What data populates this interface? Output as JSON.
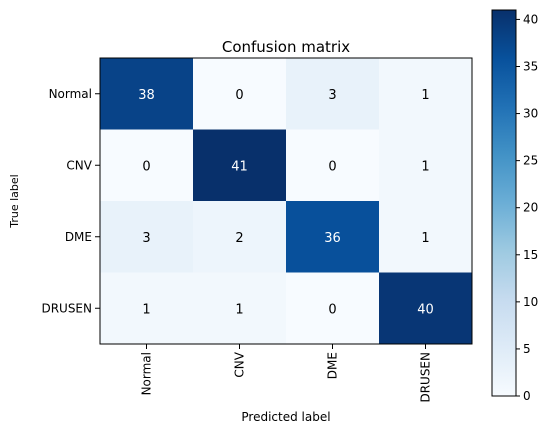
{
  "chart_data": {
    "type": "heatmap",
    "title": "Confusion matrix",
    "xlabel": "Predicted label",
    "ylabel": "True label",
    "row_labels": [
      "Normal",
      "CNV",
      "DME",
      "DRUSEN"
    ],
    "col_labels": [
      "Normal",
      "CNV",
      "DME",
      "DRUSEN"
    ],
    "values": [
      [
        38,
        0,
        3,
        1
      ],
      [
        0,
        41,
        0,
        1
      ],
      [
        3,
        2,
        36,
        1
      ],
      [
        1,
        1,
        0,
        40
      ]
    ],
    "colorbar": {
      "min": 0,
      "max": 41,
      "ticks": [
        0,
        5,
        10,
        15,
        20,
        25,
        30,
        35,
        40
      ]
    },
    "colormap": "Blues",
    "text_threshold": 20.5,
    "colors": {
      "light_text": "#ffffff",
      "dark_text": "#000000"
    }
  }
}
